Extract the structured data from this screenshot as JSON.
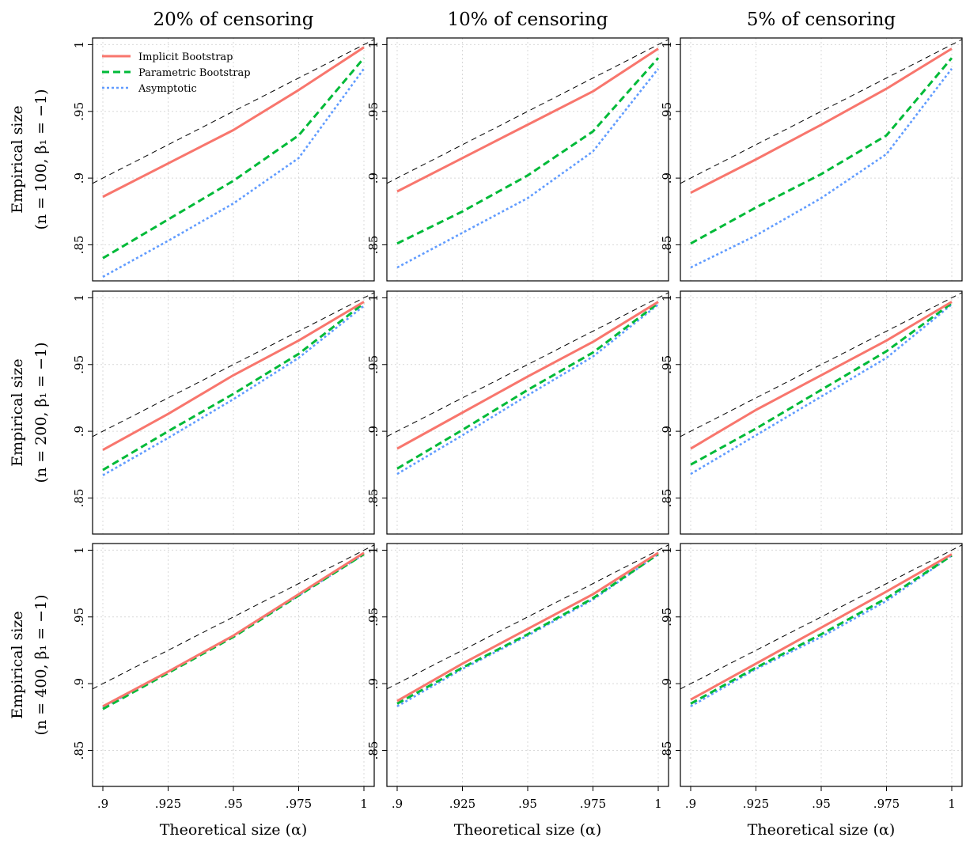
{
  "colors": {
    "implicit": "#F8766D",
    "parametric": "#00BA38",
    "asymptotic": "#619CFF",
    "reference": "#000000",
    "grid": "#d9d9d9"
  },
  "column_titles": [
    "20% of censoring",
    "10% of censoring",
    "5% of censoring"
  ],
  "row_labels": [
    {
      "line1": "Empirical size",
      "line2": "(n = 100, β₁ = −1)"
    },
    {
      "line1": "Empirical size",
      "line2": "(n = 200, β₁ = −1)"
    },
    {
      "line1": "Empirical size",
      "line2": "(n = 400, β₁ = −1)"
    }
  ],
  "x_axis_title": "Theoretical size (α)",
  "x_ticks": [
    0.9,
    0.925,
    0.95,
    0.975,
    1
  ],
  "x_tick_labels": [
    ".9",
    ".925",
    ".95",
    ".975",
    "1"
  ],
  "y_ticks": [
    0.85,
    0.9,
    0.95,
    1
  ],
  "y_tick_labels": [
    ".85",
    ".9",
    ".95",
    "1"
  ],
  "legend": {
    "placement": "top-left",
    "items": [
      {
        "label": "Implicit Bootstrap",
        "style": "solid"
      },
      {
        "label": "Parametric Bootstrap",
        "style": "dashed"
      },
      {
        "label": "Asymptotic",
        "style": "dotted"
      }
    ]
  },
  "chart_data": [
    {
      "type": "line",
      "panel": "row1-col1",
      "xlim": [
        0.9,
        1
      ],
      "ylim": [
        0.823,
        1.005
      ],
      "x": [
        0.9,
        0.925,
        0.95,
        0.975,
        1
      ],
      "series": [
        {
          "name": "Implicit Bootstrap",
          "values": [
            0.886,
            0.911,
            0.936,
            0.966,
            0.998
          ]
        },
        {
          "name": "Parametric Bootstrap",
          "values": [
            0.84,
            0.869,
            0.898,
            0.932,
            0.99
          ]
        },
        {
          "name": "Asymptotic",
          "values": [
            0.826,
            0.853,
            0.881,
            0.915,
            0.982
          ]
        }
      ]
    },
    {
      "type": "line",
      "panel": "row1-col2",
      "xlim": [
        0.9,
        1
      ],
      "ylim": [
        0.823,
        1.005
      ],
      "x": [
        0.9,
        0.925,
        0.95,
        0.975,
        1
      ],
      "series": [
        {
          "name": "Implicit Bootstrap",
          "values": [
            0.89,
            0.915,
            0.94,
            0.965,
            0.997
          ]
        },
        {
          "name": "Parametric Bootstrap",
          "values": [
            0.851,
            0.875,
            0.902,
            0.935,
            0.99
          ]
        },
        {
          "name": "Asymptotic",
          "values": [
            0.833,
            0.859,
            0.885,
            0.92,
            0.982
          ]
        }
      ]
    },
    {
      "type": "line",
      "panel": "row1-col3",
      "xlim": [
        0.9,
        1
      ],
      "ylim": [
        0.823,
        1.005
      ],
      "x": [
        0.9,
        0.925,
        0.95,
        0.975,
        1
      ],
      "series": [
        {
          "name": "Implicit Bootstrap",
          "values": [
            0.889,
            0.914,
            0.94,
            0.967,
            0.997
          ]
        },
        {
          "name": "Parametric Bootstrap",
          "values": [
            0.851,
            0.878,
            0.903,
            0.932,
            0.99
          ]
        },
        {
          "name": "Asymptotic",
          "values": [
            0.833,
            0.857,
            0.885,
            0.918,
            0.982
          ]
        }
      ]
    },
    {
      "type": "line",
      "panel": "row2-col1",
      "xlim": [
        0.9,
        1
      ],
      "ylim": [
        0.823,
        1.005
      ],
      "x": [
        0.9,
        0.925,
        0.95,
        0.975,
        1
      ],
      "series": [
        {
          "name": "Implicit Bootstrap",
          "values": [
            0.886,
            0.913,
            0.942,
            0.968,
            0.997
          ]
        },
        {
          "name": "Parametric Bootstrap",
          "values": [
            0.871,
            0.9,
            0.928,
            0.958,
            0.996
          ]
        },
        {
          "name": "Asymptotic",
          "values": [
            0.867,
            0.895,
            0.924,
            0.955,
            0.994
          ]
        }
      ]
    },
    {
      "type": "line",
      "panel": "row2-col2",
      "xlim": [
        0.9,
        1
      ],
      "ylim": [
        0.823,
        1.005
      ],
      "x": [
        0.9,
        0.925,
        0.95,
        0.975,
        1
      ],
      "series": [
        {
          "name": "Implicit Bootstrap",
          "values": [
            0.887,
            0.914,
            0.941,
            0.967,
            0.997
          ]
        },
        {
          "name": "Parametric Bootstrap",
          "values": [
            0.872,
            0.901,
            0.931,
            0.959,
            0.996
          ]
        },
        {
          "name": "Asymptotic",
          "values": [
            0.868,
            0.897,
            0.927,
            0.956,
            0.995
          ]
        }
      ]
    },
    {
      "type": "line",
      "panel": "row2-col3",
      "xlim": [
        0.9,
        1
      ],
      "ylim": [
        0.823,
        1.005
      ],
      "x": [
        0.9,
        0.925,
        0.95,
        0.975,
        1
      ],
      "series": [
        {
          "name": "Implicit Bootstrap",
          "values": [
            0.887,
            0.916,
            0.942,
            0.968,
            0.997
          ]
        },
        {
          "name": "Parametric Bootstrap",
          "values": [
            0.875,
            0.902,
            0.931,
            0.96,
            0.996
          ]
        },
        {
          "name": "Asymptotic",
          "values": [
            0.868,
            0.897,
            0.926,
            0.955,
            0.995
          ]
        }
      ]
    },
    {
      "type": "line",
      "panel": "row3-col1",
      "xlim": [
        0.9,
        1
      ],
      "ylim": [
        0.823,
        1.005
      ],
      "x": [
        0.9,
        0.925,
        0.95,
        0.975,
        1
      ],
      "series": [
        {
          "name": "Implicit Bootstrap",
          "values": [
            0.883,
            0.909,
            0.936,
            0.967,
            0.998
          ]
        },
        {
          "name": "Parametric Bootstrap",
          "values": [
            0.881,
            0.908,
            0.935,
            0.966,
            0.997
          ]
        },
        {
          "name": "Asymptotic",
          "values": [
            0.882,
            0.909,
            0.936,
            0.966,
            0.997
          ]
        }
      ]
    },
    {
      "type": "line",
      "panel": "row3-col2",
      "xlim": [
        0.9,
        1
      ],
      "ylim": [
        0.823,
        1.005
      ],
      "x": [
        0.9,
        0.925,
        0.95,
        0.975,
        1
      ],
      "series": [
        {
          "name": "Implicit Bootstrap",
          "values": [
            0.887,
            0.915,
            0.941,
            0.967,
            0.998
          ]
        },
        {
          "name": "Parametric Bootstrap",
          "values": [
            0.885,
            0.912,
            0.937,
            0.964,
            0.997
          ]
        },
        {
          "name": "Asymptotic",
          "values": [
            0.883,
            0.911,
            0.936,
            0.963,
            0.997
          ]
        }
      ]
    },
    {
      "type": "line",
      "panel": "row3-col3",
      "xlim": [
        0.9,
        1
      ],
      "ylim": [
        0.823,
        1.005
      ],
      "x": [
        0.9,
        0.925,
        0.95,
        0.975,
        1
      ],
      "series": [
        {
          "name": "Implicit Bootstrap",
          "values": [
            0.888,
            0.915,
            0.942,
            0.969,
            0.997
          ]
        },
        {
          "name": "Parametric Bootstrap",
          "values": [
            0.885,
            0.912,
            0.937,
            0.964,
            0.996
          ]
        },
        {
          "name": "Asymptotic",
          "values": [
            0.883,
            0.911,
            0.935,
            0.962,
            0.996
          ]
        }
      ]
    }
  ]
}
